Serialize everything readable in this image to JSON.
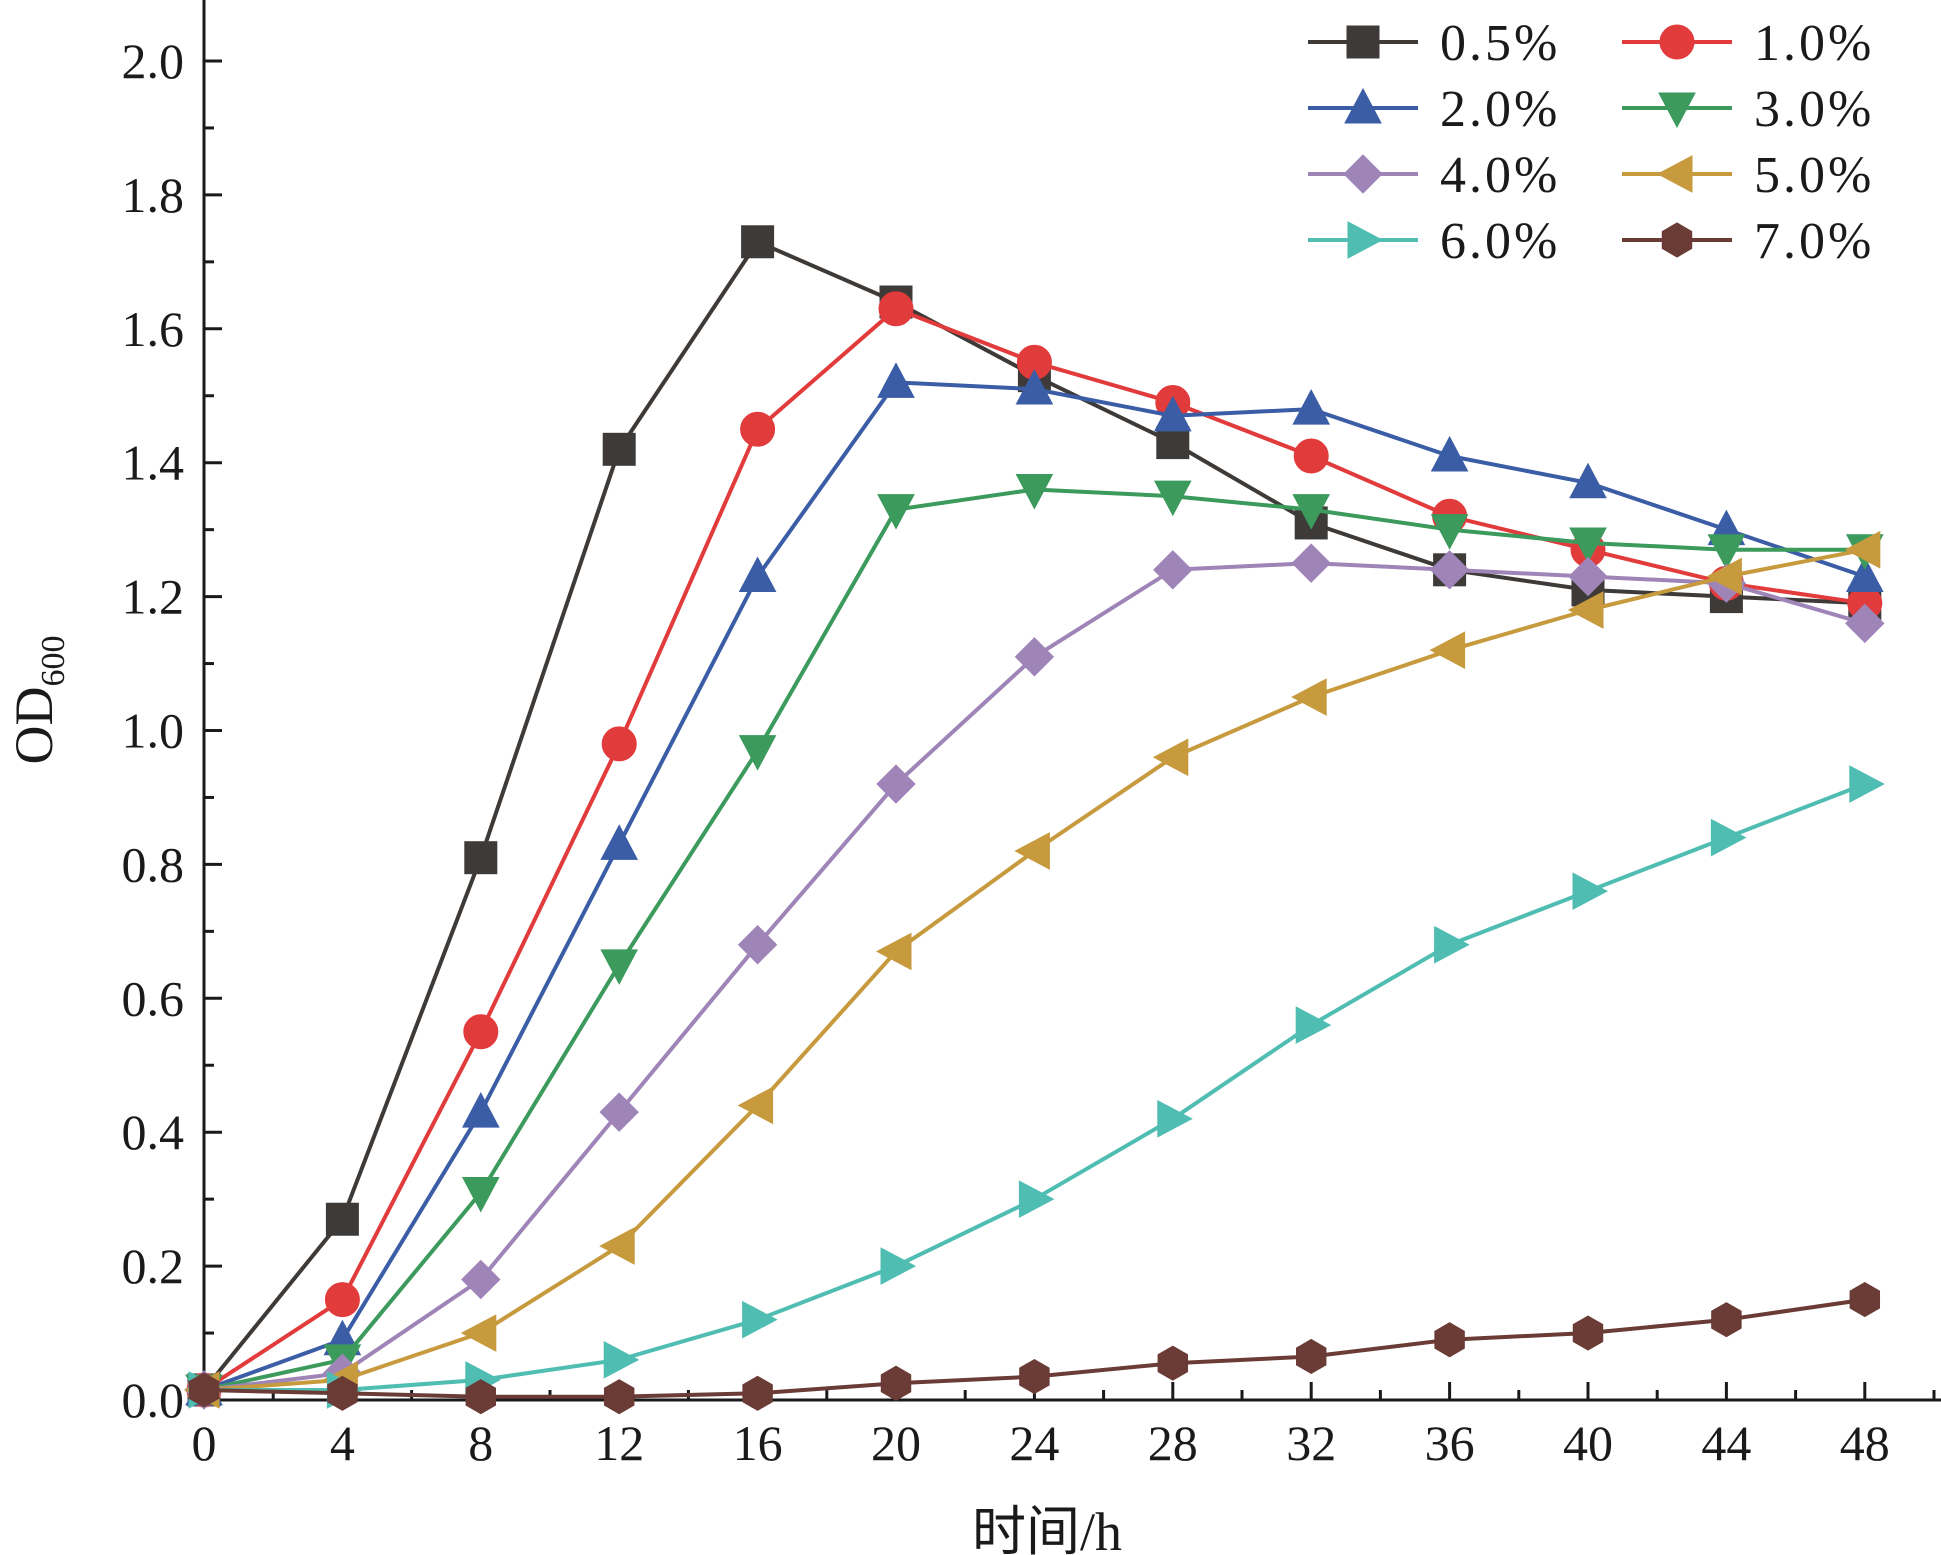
{
  "chart_data": {
    "type": "line",
    "title": "",
    "xlabel": "时间/h",
    "ylabel": "OD",
    "ylabel_subscript": "600",
    "x": [
      0,
      4,
      8,
      12,
      16,
      20,
      24,
      28,
      32,
      36,
      40,
      44,
      48
    ],
    "xlim": [
      0,
      50
    ],
    "ylim": [
      0,
      2.1
    ],
    "xticks": [
      "0",
      "4",
      "8",
      "12",
      "16",
      "20",
      "24",
      "28",
      "32",
      "36",
      "40",
      "44",
      "48"
    ],
    "yticks": [
      "0.0",
      "0.2",
      "0.4",
      "0.6",
      "0.8",
      "1.0",
      "1.2",
      "1.4",
      "1.6",
      "1.8",
      "2.0"
    ],
    "grid": false,
    "legend_position": "top-right",
    "series": [
      {
        "name": "0.5%",
        "color": "#3d3a38",
        "marker": "square",
        "values": [
          0.015,
          0.27,
          0.81,
          1.42,
          1.73,
          1.64,
          1.53,
          1.43,
          1.31,
          1.24,
          1.21,
          1.2,
          1.19
        ]
      },
      {
        "name": "1.0%",
        "color": "#e23b3c",
        "marker": "circle",
        "values": [
          0.015,
          0.15,
          0.55,
          0.98,
          1.45,
          1.63,
          1.55,
          1.49,
          1.41,
          1.32,
          1.27,
          1.22,
          1.19
        ]
      },
      {
        "name": "2.0%",
        "color": "#3a5da6",
        "marker": "triangle-up",
        "values": [
          0.015,
          0.09,
          0.43,
          0.83,
          1.23,
          1.52,
          1.51,
          1.47,
          1.48,
          1.41,
          1.37,
          1.3,
          1.23
        ]
      },
      {
        "name": "3.0%",
        "color": "#3b9a5c",
        "marker": "triangle-down",
        "values": [
          0.015,
          0.06,
          0.31,
          0.65,
          0.97,
          1.33,
          1.36,
          1.35,
          1.33,
          1.3,
          1.28,
          1.27,
          1.27
        ]
      },
      {
        "name": "4.0%",
        "color": "#9f84b8",
        "marker": "diamond",
        "values": [
          0.015,
          0.04,
          0.18,
          0.43,
          0.68,
          0.92,
          1.11,
          1.24,
          1.25,
          1.24,
          1.23,
          1.22,
          1.16
        ]
      },
      {
        "name": "5.0%",
        "color": "#c69a3d",
        "marker": "triangle-left",
        "values": [
          0.015,
          0.03,
          0.1,
          0.23,
          0.44,
          0.67,
          0.82,
          0.96,
          1.05,
          1.12,
          1.18,
          1.23,
          1.27
        ]
      },
      {
        "name": "6.0%",
        "color": "#4fbdb2",
        "marker": "triangle-right",
        "values": [
          0.015,
          0.015,
          0.03,
          0.06,
          0.12,
          0.2,
          0.3,
          0.42,
          0.56,
          0.68,
          0.76,
          0.84,
          0.92
        ]
      },
      {
        "name": "7.0%",
        "color": "#6b3b36",
        "marker": "hexagon",
        "values": [
          0.015,
          0.01,
          0.005,
          0.005,
          0.01,
          0.025,
          0.035,
          0.055,
          0.065,
          0.09,
          0.1,
          0.12,
          0.15
        ]
      }
    ]
  }
}
